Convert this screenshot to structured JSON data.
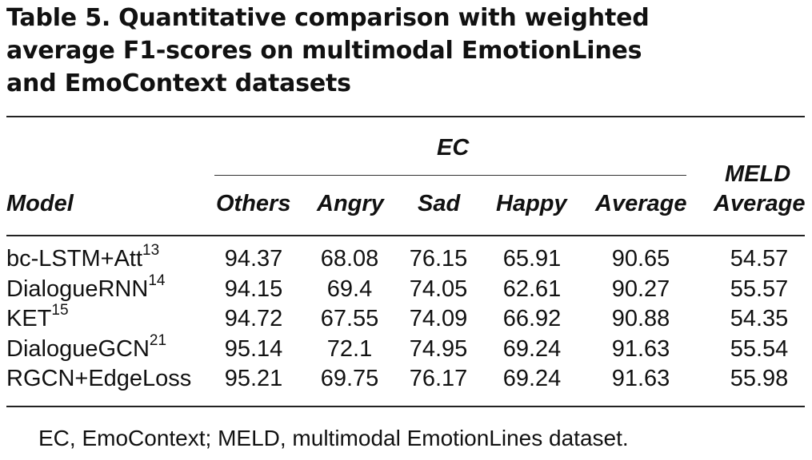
{
  "table": {
    "label": "Table 5.",
    "caption": "Quantitative comparison with weighted average F1-scores on multimodal EmotionLines and EmoContext datasets",
    "caption_lines": [
      "Quantitative comparison with weighted",
      "average F1-scores on multimodal EmotionLines",
      "and EmoContext datasets"
    ],
    "group_header": "EC",
    "columns": [
      "Model",
      "Others",
      "Angry",
      "Sad",
      "Happy",
      "Average",
      "MELD",
      "Average"
    ],
    "rows": [
      {
        "model": "bc-LSTM+Att",
        "ref": "13",
        "values": [
          "94.37",
          "68.08",
          "76.15",
          "65.91",
          "90.65",
          "54.57"
        ]
      },
      {
        "model": "DialogueRNN",
        "ref": "14",
        "values": [
          "94.15",
          "69.4",
          "74.05",
          "62.61",
          "90.27",
          "55.57"
        ]
      },
      {
        "model": "KET",
        "ref": "15",
        "values": [
          "94.72",
          "67.55",
          "74.09",
          "66.92",
          "90.88",
          "54.35"
        ]
      },
      {
        "model": "DialogueGCN",
        "ref": "21",
        "values": [
          "95.14",
          "72.1",
          "74.95",
          "69.24",
          "91.63",
          "55.54"
        ]
      },
      {
        "model": "RGCN+EdgeLoss",
        "ref": "",
        "values": [
          "95.21",
          "69.75",
          "76.17",
          "69.24",
          "91.63",
          "55.98"
        ]
      }
    ],
    "footnote": "EC, EmoContext; MELD, multimodal EmotionLines dataset."
  }
}
